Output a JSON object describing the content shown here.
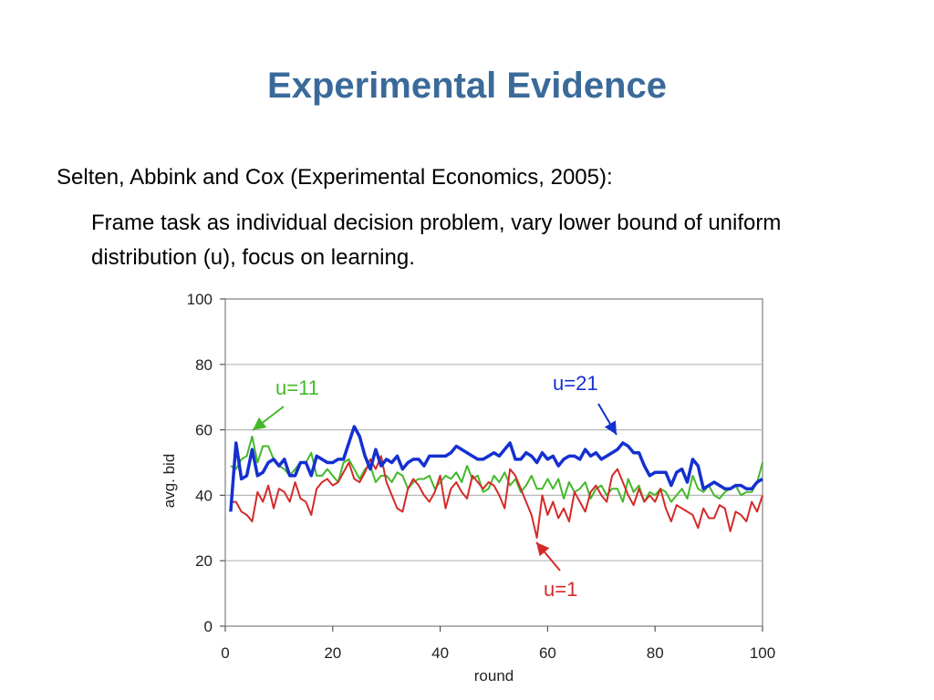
{
  "slide": {
    "title": "Experimental Evidence",
    "citation": "Selten, Abbink and Cox (Experimental Economics, 2005):",
    "description": "Frame task as individual decision problem, vary lower bound of uniform distribution (u), focus on learning."
  },
  "chart_data": {
    "type": "line",
    "title": "",
    "xlabel": "round",
    "ylabel": "avg. bid",
    "xlim": [
      0,
      100
    ],
    "ylim": [
      0,
      100
    ],
    "xticks": [
      0,
      20,
      40,
      60,
      80,
      100
    ],
    "yticks": [
      0,
      20,
      40,
      60,
      80,
      100
    ],
    "grid": "horizontal",
    "x": [
      1,
      2,
      3,
      4,
      5,
      6,
      7,
      8,
      9,
      10,
      11,
      12,
      13,
      14,
      15,
      16,
      17,
      18,
      19,
      20,
      21,
      22,
      23,
      24,
      25,
      26,
      27,
      28,
      29,
      30,
      31,
      32,
      33,
      34,
      35,
      36,
      37,
      38,
      39,
      40,
      41,
      42,
      43,
      44,
      45,
      46,
      47,
      48,
      49,
      50,
      51,
      52,
      53,
      54,
      55,
      56,
      57,
      58,
      59,
      60,
      61,
      62,
      63,
      64,
      65,
      66,
      67,
      68,
      69,
      70,
      71,
      72,
      73,
      74,
      75,
      76,
      77,
      78,
      79,
      80,
      81,
      82,
      83,
      84,
      85,
      86,
      87,
      88,
      89,
      90,
      91,
      92,
      93,
      94,
      95,
      96,
      97,
      98,
      99,
      100
    ],
    "series": [
      {
        "name": "u=21",
        "color": "#1530d0",
        "values": [
          35,
          56,
          45,
          46,
          54,
          46,
          47,
          50,
          51,
          49,
          51,
          46,
          46,
          50,
          50,
          46,
          52,
          51,
          50,
          50,
          51,
          51,
          56,
          61,
          58,
          52,
          48,
          54,
          49,
          51,
          50,
          52,
          48,
          50,
          51,
          51,
          49,
          52,
          52,
          52,
          52,
          53,
          55,
          54,
          53,
          52,
          51,
          51,
          52,
          53,
          52,
          54,
          56,
          51,
          51,
          53,
          52,
          50,
          53,
          51,
          52,
          49,
          51,
          52,
          52,
          51,
          54,
          52,
          53,
          51,
          52,
          53,
          54,
          56,
          55,
          53,
          53,
          49,
          46,
          47,
          47,
          47,
          43,
          47,
          48,
          44,
          51,
          49,
          42,
          43,
          44,
          43,
          42,
          42,
          43,
          43,
          42,
          42,
          44,
          45
        ]
      },
      {
        "name": "u=11",
        "color": "#44b82a",
        "values": [
          49,
          48,
          51,
          52,
          58,
          50,
          55,
          55,
          51,
          49,
          48,
          46,
          48,
          50,
          50,
          53,
          46,
          46,
          48,
          46,
          44,
          50,
          51,
          48,
          45,
          48,
          49,
          44,
          46,
          46,
          44,
          47,
          46,
          42,
          44,
          45,
          45,
          46,
          42,
          44,
          46,
          45,
          47,
          44,
          49,
          45,
          46,
          41,
          42,
          46,
          44,
          47,
          43,
          45,
          41,
          43,
          46,
          42,
          42,
          45,
          42,
          45,
          39,
          44,
          41,
          42,
          44,
          39,
          42,
          43,
          40,
          42,
          42,
          38,
          45,
          41,
          43,
          38,
          41,
          40,
          42,
          41,
          38,
          40,
          42,
          39,
          46,
          42,
          41,
          43,
          40,
          39,
          41,
          42,
          43,
          40,
          41,
          41,
          44,
          50
        ]
      },
      {
        "name": "u=1",
        "color": "#d42a2a",
        "values": [
          38,
          38,
          35,
          34,
          32,
          41,
          38,
          43,
          36,
          42,
          41,
          38,
          44,
          39,
          38,
          34,
          42,
          44,
          45,
          43,
          44,
          47,
          50,
          45,
          44,
          47,
          51,
          48,
          52,
          44,
          40,
          36,
          35,
          42,
          45,
          43,
          40,
          38,
          41,
          46,
          36,
          42,
          44,
          41,
          39,
          46,
          44,
          42,
          44,
          43,
          40,
          36,
          48,
          46,
          42,
          38,
          34,
          27,
          40,
          34,
          38,
          33,
          36,
          32,
          41,
          38,
          35,
          41,
          43,
          40,
          38,
          46,
          48,
          44,
          40,
          37,
          42,
          38,
          40,
          38,
          42,
          36,
          32,
          37,
          36,
          35,
          34,
          30,
          36,
          33,
          33,
          37,
          36,
          29,
          35,
          34,
          32,
          38,
          35,
          40
        ]
      }
    ],
    "annotations": [
      {
        "text": "u=11",
        "series": "u=11",
        "color": "#44b82a"
      },
      {
        "text": "u=21",
        "series": "u=21",
        "color": "#1530d0"
      },
      {
        "text": "u=1",
        "series": "u=1",
        "color": "#d42a2a"
      }
    ]
  }
}
